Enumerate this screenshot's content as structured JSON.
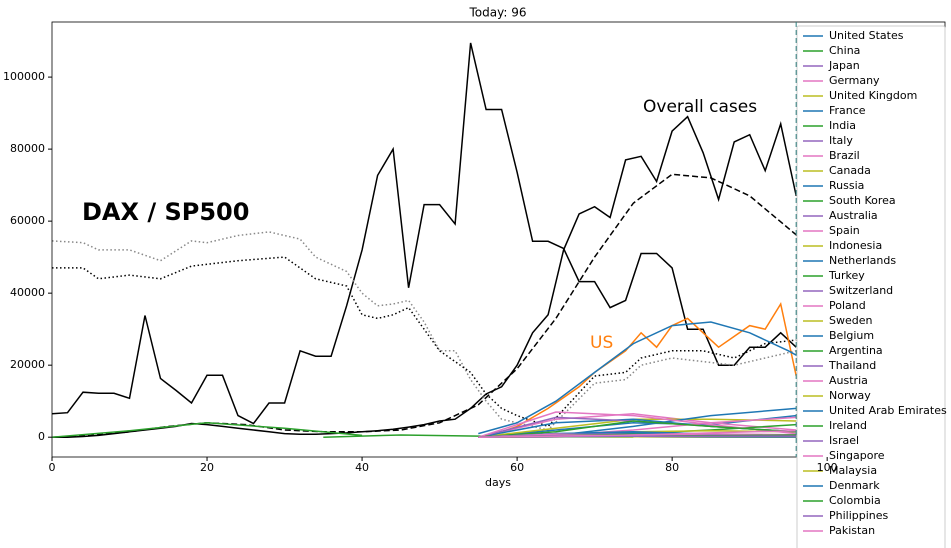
{
  "chart_data": {
    "type": "line",
    "title": "Today: 96",
    "xlabel": "days",
    "today": 96,
    "xlim": [
      0,
      115.2
    ],
    "ylim": [
      -5500,
      115300
    ],
    "xticks": [
      0,
      20,
      40,
      60,
      80,
      100
    ],
    "yticks": [
      0,
      20000,
      40000,
      60000,
      80000,
      100000
    ],
    "legend": "upper right",
    "annotations": [
      {
        "text": "Overall cases",
        "color": "#000000"
      },
      {
        "text": "DAX / SP500",
        "color": "#000000"
      },
      {
        "text": "US",
        "color": "#ff7f0e"
      }
    ],
    "series": [
      {
        "color": "#000000",
        "style": "solid",
        "x": [
          0,
          2,
          4,
          6,
          8,
          10,
          12,
          14,
          16,
          18,
          20,
          22,
          24,
          26,
          28,
          30,
          32,
          34,
          36,
          38,
          40,
          42,
          44,
          46,
          48,
          50,
          52,
          54,
          56,
          58,
          60,
          62,
          64,
          66,
          68,
          70,
          72,
          74,
          76,
          78,
          80,
          82,
          84,
          86,
          88,
          90,
          92,
          94,
          96
        ],
        "values": [
          6500,
          6800,
          12500,
          12200,
          12200,
          10800,
          33800,
          16300,
          13000,
          9500,
          17200,
          17200,
          6000,
          3800,
          9500,
          9500,
          24000,
          22500,
          22500,
          36500,
          52000,
          72700,
          80000,
          41500,
          64600,
          64600,
          59200,
          109500,
          91000,
          91000,
          73600,
          54400,
          54400,
          52400,
          43200,
          43200,
          36000,
          38000,
          51000,
          51000,
          47000,
          30000,
          30000,
          20000,
          20000,
          25000,
          25000,
          29000,
          25000
        ]
      },
      {
        "color": "#000000",
        "style": "solid",
        "x": [
          0,
          2,
          4,
          6,
          8,
          10,
          12,
          14,
          16,
          18,
          20,
          22,
          24,
          26,
          28,
          30,
          32,
          34,
          36,
          38,
          40,
          42,
          44,
          46,
          48,
          50,
          52,
          54,
          56,
          58,
          60,
          62,
          64,
          66,
          68,
          70,
          72,
          74,
          76,
          78,
          80,
          82,
          84,
          86,
          88,
          90,
          92,
          94,
          96
        ],
        "values": [
          0,
          0,
          200,
          500,
          1000,
          1500,
          2000,
          2500,
          3000,
          3800,
          3500,
          3000,
          2500,
          2000,
          1500,
          1000,
          800,
          800,
          1000,
          1200,
          1500,
          1800,
          2200,
          2800,
          3500,
          4500,
          5000,
          8000,
          12000,
          14000,
          20000,
          29000,
          34000,
          52000,
          62000,
          64000,
          61000,
          77000,
          78000,
          71000,
          85000,
          89000,
          79000,
          66000,
          82000,
          84000,
          74000,
          87000,
          67000
        ]
      },
      {
        "color": "#000000",
        "style": "dashed",
        "x": [
          0,
          5,
          10,
          15,
          20,
          25,
          30,
          35,
          40,
          45,
          50,
          55,
          60,
          65,
          70,
          75,
          80,
          85,
          90,
          95,
          100,
          105,
          110,
          115
        ],
        "values": [
          0,
          500,
          1500,
          3000,
          4000,
          3500,
          2000,
          1500,
          1500,
          2000,
          4000,
          9000,
          19000,
          33000,
          50000,
          65000,
          73000,
          72000,
          67000,
          58000,
          49000,
          40000,
          30000,
          22000
        ]
      },
      {
        "color": "#888888",
        "style": "dotted",
        "x": [
          0,
          4,
          6,
          10,
          14,
          18,
          20,
          24,
          28,
          32,
          34,
          38,
          40,
          42,
          44,
          46,
          48,
          50,
          52,
          54,
          56,
          58,
          60,
          62,
          64,
          70,
          74,
          76,
          80,
          84,
          88,
          92,
          96
        ],
        "values": [
          54500,
          54000,
          52000,
          52000,
          49000,
          54500,
          54000,
          56000,
          57000,
          55000,
          50000,
          46000,
          40000,
          36500,
          37000,
          38000,
          32000,
          24000,
          24000,
          16000,
          10000,
          5000,
          4000,
          3000,
          2000,
          15000,
          16000,
          20000,
          22000,
          21000,
          20000,
          22000,
          24000
        ]
      },
      {
        "color": "#000000",
        "style": "dotted",
        "x": [
          0,
          4,
          6,
          10,
          14,
          18,
          24,
          30,
          34,
          38,
          40,
          42,
          44,
          46,
          48,
          50,
          54,
          56,
          58,
          60,
          64,
          70,
          74,
          76,
          80,
          84,
          88,
          92,
          96
        ],
        "values": [
          47000,
          47000,
          44000,
          45000,
          44000,
          47500,
          49000,
          50000,
          44000,
          42000,
          34000,
          33000,
          34000,
          36000,
          30000,
          24000,
          18000,
          12000,
          8000,
          6000,
          3000,
          17000,
          18000,
          22000,
          24000,
          24000,
          22000,
          26000,
          27000
        ]
      },
      {
        "color": "#ff7f0e",
        "style": "solid",
        "x": [
          56,
          60,
          64,
          68,
          70,
          72,
          74,
          76,
          78,
          80,
          82,
          84,
          86,
          88,
          90,
          92,
          94,
          96
        ],
        "values": [
          0,
          3000,
          8000,
          14000,
          18000,
          21000,
          24000,
          29000,
          25000,
          31000,
          33000,
          29000,
          25000,
          28000,
          31000,
          30000,
          37000,
          17000
        ]
      },
      {
        "color": "#1f77b4",
        "style": "solid",
        "x": [
          55,
          60,
          65,
          70,
          75,
          80,
          85,
          90,
          95,
          100,
          105,
          110,
          115
        ],
        "values": [
          1000,
          4000,
          10000,
          18000,
          26000,
          31000,
          32000,
          29000,
          24000,
          18000,
          12000,
          8000,
          5000
        ]
      },
      {
        "name": "United States",
        "color": "#1f77b4",
        "style": "solid",
        "x": [
          55,
          65,
          75,
          85,
          96
        ],
        "values": [
          0,
          2000,
          4000,
          3500,
          6000
        ]
      },
      {
        "name": "China",
        "color": "#2ca02c",
        "style": "solid",
        "x": [
          0,
          10,
          20,
          30,
          40
        ],
        "values": [
          0,
          1800,
          4000,
          2500,
          500
        ]
      },
      {
        "name": "Japan",
        "color": "#9467bd",
        "style": "solid",
        "x": [
          55,
          65,
          75,
          85,
          96
        ],
        "values": [
          0,
          500,
          1200,
          900,
          400
        ]
      },
      {
        "name": "Germany",
        "color": "#e377c2",
        "style": "solid",
        "x": [
          55,
          65,
          75,
          85,
          96
        ],
        "values": [
          0,
          5000,
          6500,
          4000,
          2000
        ]
      },
      {
        "name": "United Kingdom",
        "color": "#bcbd22",
        "style": "solid",
        "x": [
          55,
          65,
          75,
          85,
          96
        ],
        "values": [
          0,
          2500,
          5000,
          5000,
          4500
        ]
      },
      {
        "name": "France",
        "color": "#1f77b4",
        "style": "solid",
        "x": [
          55,
          65,
          75,
          85,
          96
        ],
        "values": [
          0,
          4000,
          5000,
          3000,
          1500
        ]
      },
      {
        "name": "India",
        "color": "#2ca02c",
        "style": "solid",
        "x": [
          55,
          65,
          75,
          85,
          96
        ],
        "values": [
          0,
          300,
          1000,
          2000,
          3500
        ]
      },
      {
        "name": "Italy",
        "color": "#9467bd",
        "style": "solid",
        "x": [
          55,
          65,
          75,
          85,
          96
        ],
        "values": [
          0,
          5500,
          4500,
          3000,
          1500
        ]
      },
      {
        "name": "Brazil",
        "color": "#e377c2",
        "style": "solid",
        "x": [
          55,
          65,
          75,
          85,
          96
        ],
        "values": [
          0,
          500,
          2000,
          4000,
          5500
        ]
      },
      {
        "name": "Canada",
        "color": "#bcbd22",
        "style": "solid",
        "x": [
          55,
          65,
          75,
          85,
          96
        ],
        "values": [
          0,
          800,
          1500,
          1800,
          1500
        ]
      },
      {
        "name": "Russia",
        "color": "#1f77b4",
        "style": "solid",
        "x": [
          55,
          65,
          75,
          85,
          96
        ],
        "values": [
          0,
          500,
          3000,
          6000,
          8000
        ]
      },
      {
        "name": "South Korea",
        "color": "#2ca02c",
        "style": "solid",
        "x": [
          35,
          45,
          55,
          65,
          75
        ],
        "values": [
          0,
          600,
          300,
          100,
          50
        ]
      },
      {
        "name": "Australia",
        "color": "#9467bd",
        "style": "solid",
        "x": [
          55,
          65,
          75,
          85,
          96
        ],
        "values": [
          0,
          400,
          300,
          100,
          0
        ]
      },
      {
        "name": "Spain",
        "color": "#e377c2",
        "style": "solid",
        "x": [
          55,
          65,
          75,
          85,
          96
        ],
        "values": [
          0,
          7000,
          6000,
          3500,
          1000
        ]
      },
      {
        "name": "Indonesia",
        "color": "#bcbd22",
        "style": "solid",
        "x": [
          55,
          65,
          75,
          85,
          96
        ],
        "values": [
          0,
          200,
          400,
          400,
          500
        ]
      },
      {
        "name": "Netherlands",
        "color": "#1f77b4",
        "style": "solid",
        "x": [
          55,
          65,
          75,
          85,
          96
        ],
        "values": [
          0,
          1000,
          1200,
          700,
          300
        ]
      },
      {
        "name": "Turkey",
        "color": "#2ca02c",
        "style": "solid",
        "x": [
          55,
          65,
          75,
          85,
          96
        ],
        "values": [
          0,
          1500,
          4500,
          3000,
          1500
        ]
      },
      {
        "name": "Switzerland",
        "color": "#9467bd",
        "style": "solid",
        "x": [
          55,
          65,
          75,
          85,
          96
        ],
        "values": [
          0,
          1000,
          800,
          300,
          100
        ]
      },
      {
        "name": "Poland",
        "color": "#e377c2",
        "style": "solid",
        "x": [
          55,
          65,
          75,
          85,
          96
        ],
        "values": [
          0,
          200,
          400,
          400,
          300
        ]
      },
      {
        "name": "Sweden",
        "color": "#bcbd22",
        "style": "solid",
        "x": [
          55,
          65,
          75,
          85,
          96
        ],
        "values": [
          0,
          300,
          600,
          700,
          600
        ]
      },
      {
        "name": "Belgium",
        "color": "#1f77b4",
        "style": "solid",
        "x": [
          55,
          65,
          75,
          85,
          96
        ],
        "values": [
          0,
          1000,
          1500,
          900,
          400
        ]
      },
      {
        "name": "Argentina",
        "color": "#2ca02c",
        "style": "solid",
        "x": [
          55,
          65,
          75,
          85,
          96
        ],
        "values": [
          0,
          100,
          200,
          300,
          500
        ]
      },
      {
        "name": "Thailand",
        "color": "#9467bd",
        "style": "solid",
        "x": [
          55,
          65,
          75,
          85,
          96
        ],
        "values": [
          0,
          100,
          100,
          50,
          0
        ]
      },
      {
        "name": "Austria",
        "color": "#e377c2",
        "style": "solid",
        "x": [
          55,
          65,
          75,
          85,
          96
        ],
        "values": [
          0,
          900,
          400,
          100,
          50
        ]
      },
      {
        "name": "Norway",
        "color": "#bcbd22",
        "style": "solid",
        "x": [
          55,
          65,
          75,
          85,
          96
        ],
        "values": [
          0,
          300,
          150,
          50,
          20
        ]
      },
      {
        "name": "United Arab Emirates",
        "color": "#1f77b4",
        "style": "solid",
        "x": [
          55,
          65,
          75,
          85,
          96
        ],
        "values": [
          0,
          100,
          400,
          600,
          700
        ]
      },
      {
        "name": "Ireland",
        "color": "#2ca02c",
        "style": "solid",
        "x": [
          55,
          65,
          75,
          85,
          96
        ],
        "values": [
          0,
          400,
          800,
          400,
          100
        ]
      },
      {
        "name": "Israel",
        "color": "#9467bd",
        "style": "solid",
        "x": [
          55,
          65,
          75,
          85,
          96
        ],
        "values": [
          0,
          400,
          500,
          200,
          50
        ]
      },
      {
        "name": "Singapore",
        "color": "#e377c2",
        "style": "solid",
        "x": [
          55,
          65,
          75,
          85,
          96
        ],
        "values": [
          0,
          50,
          600,
          900,
          700
        ]
      },
      {
        "name": "Malaysia",
        "color": "#bcbd22",
        "style": "solid",
        "x": [
          55,
          65,
          75,
          85,
          96
        ],
        "values": [
          0,
          200,
          100,
          50,
          50
        ]
      },
      {
        "name": "Denmark",
        "color": "#1f77b4",
        "style": "solid",
        "x": [
          55,
          65,
          75,
          85,
          96
        ],
        "values": [
          0,
          300,
          250,
          150,
          80
        ]
      },
      {
        "name": "Colombia",
        "color": "#2ca02c",
        "style": "solid",
        "x": [
          55,
          65,
          75,
          85,
          96
        ],
        "values": [
          0,
          100,
          250,
          400,
          600
        ]
      },
      {
        "name": "Philippines",
        "color": "#9467bd",
        "style": "solid",
        "x": [
          55,
          65,
          75,
          85,
          96
        ],
        "values": [
          0,
          200,
          250,
          250,
          300
        ]
      },
      {
        "name": "Pakistan",
        "color": "#e377c2",
        "style": "solid",
        "x": [
          55,
          65,
          75,
          85,
          96
        ],
        "values": [
          0,
          300,
          600,
          1200,
          1800
        ]
      }
    ]
  }
}
